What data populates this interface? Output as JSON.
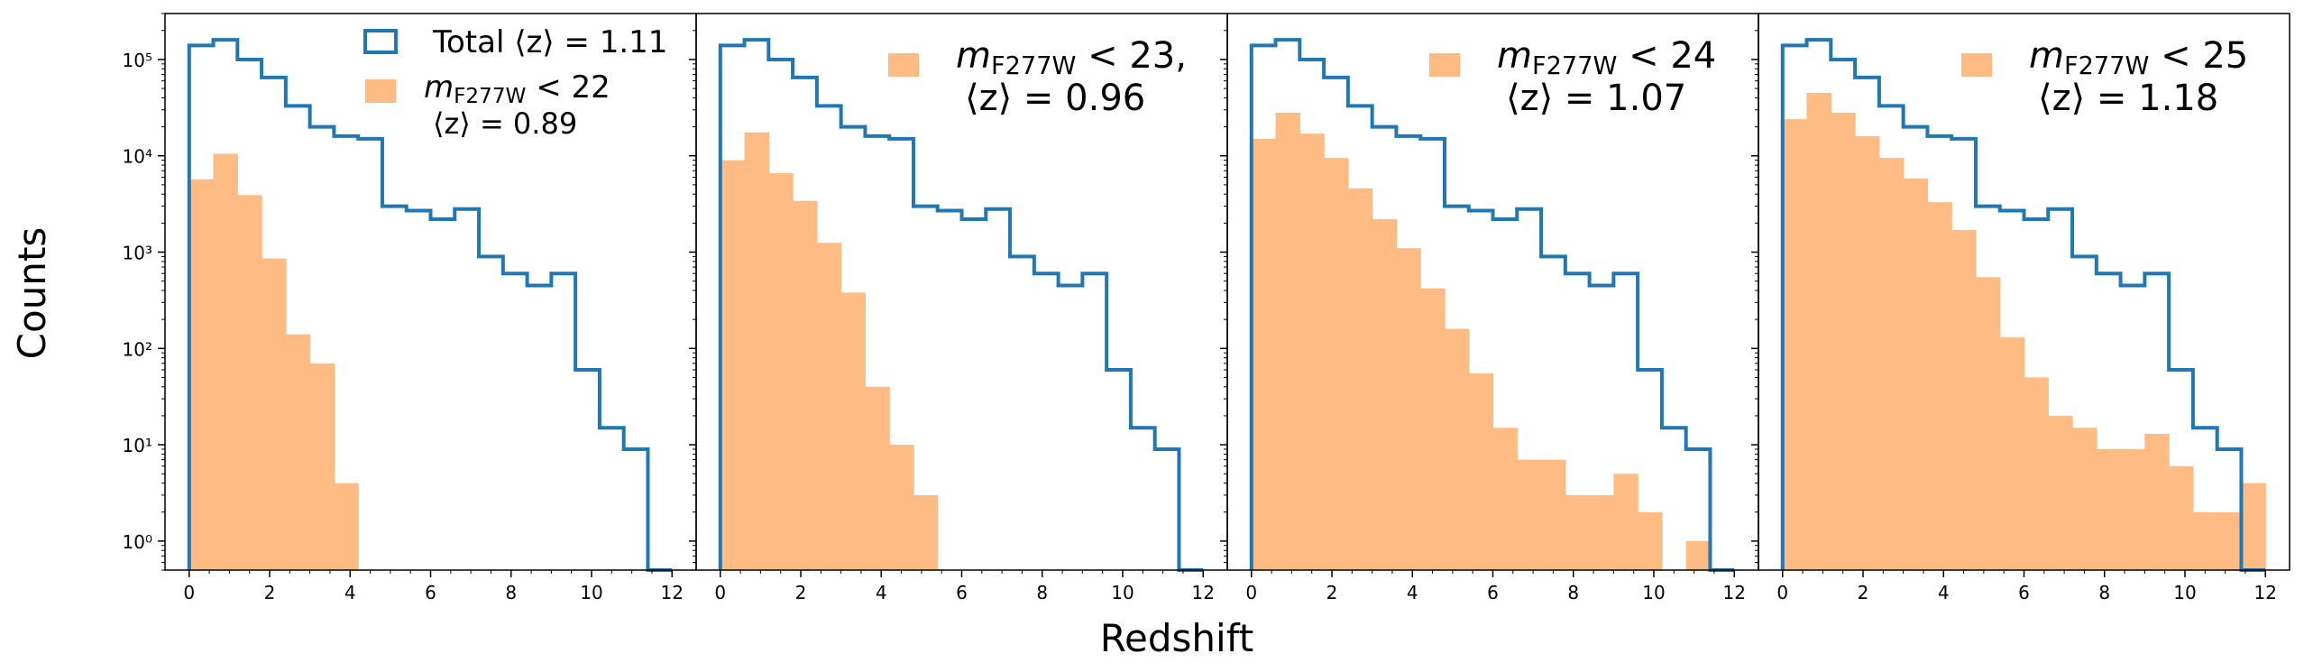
{
  "figure": {
    "xlabel": "Redshift",
    "ylabel": "Counts"
  },
  "chart_data": [
    {
      "type": "bar",
      "bin_edges": [
        0,
        0.6,
        1.2,
        1.8,
        2.4,
        3.0,
        3.6,
        4.2,
        4.8,
        5.4,
        6.0,
        6.6,
        7.2,
        7.8,
        8.4,
        9.0,
        9.6,
        10.2,
        10.8,
        11.4,
        12.0
      ],
      "xlim": [
        -0.6,
        12.6
      ],
      "ylim": [
        0.5,
        300000
      ],
      "yscale": "log",
      "xticks": [
        "0",
        "2",
        "4",
        "6",
        "8",
        "10",
        "12"
      ],
      "yticks": [
        "10⁰",
        "10¹",
        "10²",
        "10³",
        "10⁴",
        "10⁵"
      ],
      "series": [
        {
          "name": "Total ⟨z⟩ = 1.11",
          "style": "step",
          "color": "#1f77b4",
          "values": [
            140000,
            160000,
            100000,
            65000,
            33000,
            20000,
            16000,
            15000,
            3000,
            2700,
            2200,
            2800,
            900,
            600,
            450,
            600,
            60,
            15,
            9,
            0
          ]
        },
        {
          "name": "m_F277W < 22 ⟨z⟩ = 0.89",
          "style": "fill",
          "color": "#ffbb84",
          "values": [
            5700,
            10500,
            3900,
            860,
            140,
            70,
            4,
            0,
            0,
            0,
            0,
            0,
            0,
            0,
            0,
            0,
            0,
            0,
            0,
            0
          ]
        }
      ],
      "legend": [
        {
          "label": "Total ⟨z⟩ = 1.11"
        },
        {
          "label": "m",
          "sub": "F277W",
          "rest": " < 22"
        },
        {
          "label": "⟨z⟩ = 0.89"
        }
      ]
    },
    {
      "type": "bar",
      "bin_edges": [
        0,
        0.6,
        1.2,
        1.8,
        2.4,
        3.0,
        3.6,
        4.2,
        4.8,
        5.4,
        6.0,
        6.6,
        7.2,
        7.8,
        8.4,
        9.0,
        9.6,
        10.2,
        10.8,
        11.4,
        12.0
      ],
      "xlim": [
        -0.6,
        12.6
      ],
      "ylim": [
        0.5,
        300000
      ],
      "yscale": "log",
      "xticks": [
        "0",
        "2",
        "4",
        "6",
        "8",
        "10",
        "12"
      ],
      "series": [
        {
          "name": "Total",
          "style": "step",
          "color": "#1f77b4",
          "values": [
            140000,
            160000,
            100000,
            65000,
            33000,
            20000,
            16000,
            15000,
            3000,
            2700,
            2200,
            2800,
            900,
            600,
            450,
            600,
            60,
            15,
            9,
            0
          ]
        },
        {
          "name": "m_F277W < 23, ⟨z⟩ = 0.96",
          "style": "fill",
          "color": "#ffbb84",
          "values": [
            9000,
            17500,
            6600,
            3400,
            1250,
            380,
            40,
            10,
            3,
            0,
            0,
            0,
            0,
            0,
            0,
            0,
            0,
            0,
            0,
            0
          ]
        }
      ],
      "legend": [
        {
          "label": "m",
          "sub": "F277W",
          "rest": " < 23,"
        },
        {
          "label": "⟨z⟩ = 0.96"
        }
      ]
    },
    {
      "type": "bar",
      "bin_edges": [
        0,
        0.6,
        1.2,
        1.8,
        2.4,
        3.0,
        3.6,
        4.2,
        4.8,
        5.4,
        6.0,
        6.6,
        7.2,
        7.8,
        8.4,
        9.0,
        9.6,
        10.2,
        10.8,
        11.4,
        12.0
      ],
      "xlim": [
        -0.6,
        12.6
      ],
      "ylim": [
        0.5,
        300000
      ],
      "yscale": "log",
      "xticks": [
        "0",
        "2",
        "4",
        "6",
        "8",
        "10",
        "12"
      ],
      "series": [
        {
          "name": "Total",
          "style": "step",
          "color": "#1f77b4",
          "values": [
            140000,
            160000,
            100000,
            65000,
            33000,
            20000,
            16000,
            15000,
            3000,
            2700,
            2200,
            2800,
            900,
            600,
            450,
            600,
            60,
            15,
            9,
            0
          ]
        },
        {
          "name": "m_F277W < 24 ⟨z⟩ = 1.07",
          "style": "fill",
          "color": "#ffbb84",
          "values": [
            15000,
            28000,
            17000,
            9500,
            4600,
            2200,
            1100,
            420,
            160,
            55,
            15,
            7,
            7,
            3,
            3,
            5,
            2,
            0,
            1,
            0
          ]
        }
      ],
      "legend": [
        {
          "label": "m",
          "sub": "F277W",
          "rest": " < 24"
        },
        {
          "label": "⟨z⟩ = 1.07"
        }
      ]
    },
    {
      "type": "bar",
      "bin_edges": [
        0,
        0.6,
        1.2,
        1.8,
        2.4,
        3.0,
        3.6,
        4.2,
        4.8,
        5.4,
        6.0,
        6.6,
        7.2,
        7.8,
        8.4,
        9.0,
        9.6,
        10.2,
        10.8,
        11.4,
        12.0
      ],
      "xlim": [
        -0.6,
        12.6
      ],
      "ylim": [
        0.5,
        300000
      ],
      "yscale": "log",
      "xticks": [
        "0",
        "2",
        "4",
        "6",
        "8",
        "10",
        "12"
      ],
      "series": [
        {
          "name": "Total",
          "style": "step",
          "color": "#1f77b4",
          "values": [
            140000,
            160000,
            100000,
            65000,
            33000,
            20000,
            16000,
            15000,
            3000,
            2700,
            2200,
            2800,
            900,
            600,
            450,
            600,
            60,
            15,
            9,
            0
          ]
        },
        {
          "name": "m_F277W < 25 ⟨z⟩ = 1.18",
          "style": "fill",
          "color": "#ffbb84",
          "values": [
            24000,
            45000,
            28000,
            16000,
            9500,
            5800,
            3300,
            1700,
            550,
            130,
            50,
            20,
            15,
            9,
            9,
            13,
            6,
            2,
            2,
            4
          ]
        }
      ],
      "legend": [
        {
          "label": "m",
          "sub": "F277W",
          "rest": " < 25"
        },
        {
          "label": "⟨z⟩ = 1.18"
        }
      ]
    }
  ]
}
